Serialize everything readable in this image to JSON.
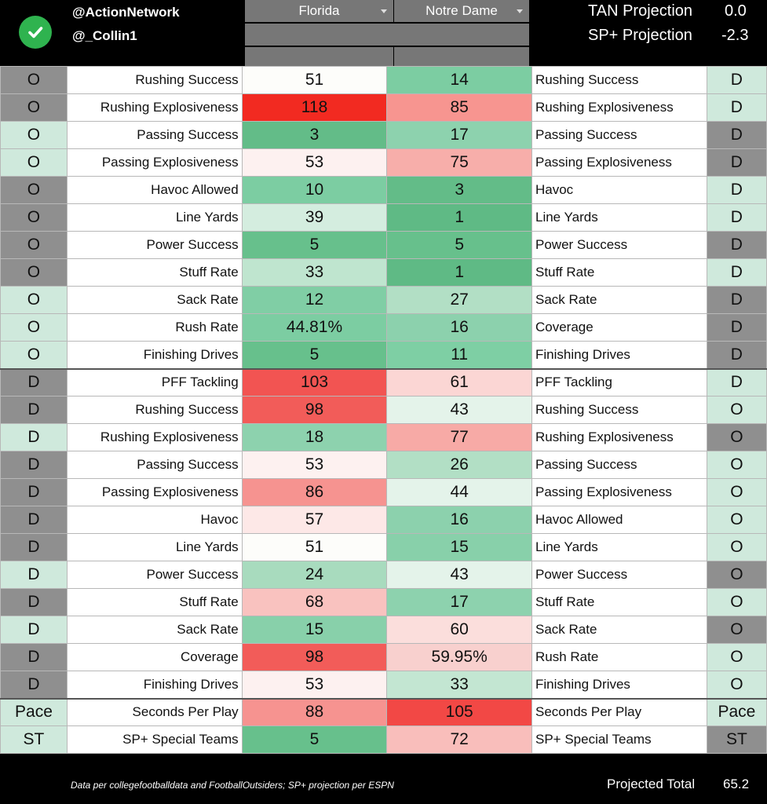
{
  "header": {
    "handle_primary": "@ActionNetwork",
    "handle_secondary": "@_Collin1",
    "check_icon": "check-circle-icon",
    "team_left": "Florida",
    "team_right": "Notre Dame",
    "tan_label": "TAN Projection",
    "tan_value": "0.0",
    "sp_label": "SP+ Projection",
    "sp_value": "-2.3"
  },
  "colors": {
    "accent_green": "#2fb34f",
    "header_band": "#777777",
    "side_dark": "#8f8f8f",
    "side_light": "#cfe9dc"
  },
  "rows": [
    {
      "ls": "O",
      "lst": "d",
      "ll": "Rushing Success",
      "lv": "51",
      "lc": "#fdfdfa",
      "rv": "14",
      "rc": "#7ccda2",
      "rl": "Rushing Success",
      "rs": "D",
      "rst": "l"
    },
    {
      "ls": "O",
      "lst": "d",
      "ll": "Rushing Explosiveness",
      "lv": "118",
      "lc": "#f22a21",
      "rv": "85",
      "rc": "#f79590",
      "rl": "Rushing Explosiveness",
      "rs": "D",
      "rst": "l"
    },
    {
      "ls": "O",
      "lst": "l",
      "ll": "Passing Success",
      "lv": "3",
      "lc": "#63bc88",
      "rv": "17",
      "rc": "#8dd2ae",
      "rl": "Passing Success",
      "rs": "D",
      "rst": "d"
    },
    {
      "ls": "O",
      "lst": "l",
      "ll": "Passing Explosiveness",
      "lv": "53",
      "lc": "#fdf1f0",
      "rv": "75",
      "rc": "#f7aeaa",
      "rl": "Passing Explosiveness",
      "rs": "D",
      "rst": "d"
    },
    {
      "ls": "O",
      "lst": "d",
      "ll": "Havoc Allowed",
      "lv": "10",
      "lc": "#7ccda2",
      "rv": "3",
      "rc": "#63bc88",
      "rl": "Havoc",
      "rs": "D",
      "rst": "l"
    },
    {
      "ls": "O",
      "lst": "d",
      "ll": "Line Yards",
      "lv": "39",
      "lc": "#d4eddf",
      "rv": "1",
      "rc": "#5fba85",
      "rl": "Line Yards",
      "rs": "D",
      "rst": "l"
    },
    {
      "ls": "O",
      "lst": "d",
      "ll": "Power Success",
      "lv": "5",
      "lc": "#67c08c",
      "rv": "5",
      "rc": "#67c08c",
      "rl": "Power Success",
      "rs": "D",
      "rst": "d"
    },
    {
      "ls": "O",
      "lst": "d",
      "ll": "Stuff Rate",
      "lv": "33",
      "lc": "#bfe5cf",
      "rv": "1",
      "rc": "#5fba85",
      "rl": "Stuff Rate",
      "rs": "D",
      "rst": "l"
    },
    {
      "ls": "O",
      "lst": "l",
      "ll": "Sack Rate",
      "lv": "12",
      "lc": "#80cea5",
      "rv": "27",
      "rc": "#b2dfc5",
      "rl": "Sack Rate",
      "rs": "D",
      "rst": "d"
    },
    {
      "ls": "O",
      "lst": "l",
      "ll": "Rush Rate",
      "lv": "44.81%",
      "lc": "#7ccda2",
      "rv": "16",
      "rc": "#8cd1ad",
      "rl": "Coverage",
      "rs": "D",
      "rst": "d"
    },
    {
      "ls": "O",
      "lst": "l",
      "ll": "Finishing Drives",
      "lv": "5",
      "lc": "#67c08c",
      "rv": "11",
      "rc": "#7ecfa4",
      "rl": "Finishing Drives",
      "rs": "D",
      "rst": "d"
    },
    {
      "ls": "D",
      "lst": "d",
      "ll": "PFF Tackling",
      "lv": "103",
      "lc": "#f25452",
      "rv": "61",
      "rc": "#fbd6d4",
      "rl": "PFF Tackling",
      "rs": "D",
      "rst": "l",
      "sep": true
    },
    {
      "ls": "D",
      "lst": "d",
      "ll": "Rushing Success",
      "lv": "98",
      "lc": "#f25c59",
      "rv": "43",
      "rc": "#e4f3ea",
      "rl": "Rushing Success",
      "rs": "O",
      "rst": "l"
    },
    {
      "ls": "D",
      "lst": "l",
      "ll": "Rushing Explosiveness",
      "lv": "18",
      "lc": "#8dd2ae",
      "rv": "77",
      "rc": "#f7aaa6",
      "rl": "Rushing Explosiveness",
      "rs": "O",
      "rst": "d"
    },
    {
      "ls": "D",
      "lst": "d",
      "ll": "Passing Success",
      "lv": "53",
      "lc": "#fdf1f0",
      "rv": "26",
      "rc": "#b2dfc5",
      "rl": "Passing Success",
      "rs": "O",
      "rst": "l"
    },
    {
      "ls": "D",
      "lst": "d",
      "ll": "Passing Explosiveness",
      "lv": "86",
      "lc": "#f69390",
      "rv": "44",
      "rc": "#e4f3ea",
      "rl": "Passing Explosiveness",
      "rs": "O",
      "rst": "l"
    },
    {
      "ls": "D",
      "lst": "d",
      "ll": "Havoc",
      "lv": "57",
      "lc": "#fde8e7",
      "rv": "16",
      "rc": "#8cd1ad",
      "rl": "Havoc Allowed",
      "rs": "O",
      "rst": "l"
    },
    {
      "ls": "D",
      "lst": "d",
      "ll": "Line Yards",
      "lv": "51",
      "lc": "#fdfdfa",
      "rv": "15",
      "rc": "#88d0aa",
      "rl": "Line Yards",
      "rs": "O",
      "rst": "l"
    },
    {
      "ls": "D",
      "lst": "l",
      "ll": "Power Success",
      "lv": "24",
      "lc": "#a8dbbe",
      "rv": "43",
      "rc": "#e4f3ea",
      "rl": "Power Success",
      "rs": "O",
      "rst": "d"
    },
    {
      "ls": "D",
      "lst": "d",
      "ll": "Stuff Rate",
      "lv": "68",
      "lc": "#f9c2bf",
      "rv": "17",
      "rc": "#8dd2ae",
      "rl": "Stuff Rate",
      "rs": "O",
      "rst": "l"
    },
    {
      "ls": "D",
      "lst": "l",
      "ll": "Sack Rate",
      "lv": "15",
      "lc": "#88d0aa",
      "rv": "60",
      "rc": "#fbdedc",
      "rl": "Sack Rate",
      "rs": "O",
      "rst": "d"
    },
    {
      "ls": "D",
      "lst": "d",
      "ll": "Coverage",
      "lv": "98",
      "lc": "#f25c59",
      "rv": "59.95%",
      "rc": "#f8d0ce",
      "rl": "Rush Rate",
      "rs": "O",
      "rst": "l"
    },
    {
      "ls": "D",
      "lst": "d",
      "ll": "Finishing Drives",
      "lv": "53",
      "lc": "#fdf1f0",
      "rv": "33",
      "rc": "#c3e6d2",
      "rl": "Finishing Drives",
      "rs": "O",
      "rst": "l"
    },
    {
      "ls": "Pace",
      "lst": "l",
      "ll": "Seconds Per Play",
      "lv": "88",
      "lc": "#f69390",
      "rv": "105",
      "rc": "#f24845",
      "rl": "Seconds Per Play",
      "rs": "Pace",
      "rst": "l",
      "sep": true
    },
    {
      "ls": "ST",
      "lst": "l",
      "ll": "SP+ Special Teams",
      "lv": "5",
      "lc": "#67c08c",
      "rv": "72",
      "rc": "#f9bebb",
      "rl": "SP+ Special Teams",
      "rs": "ST",
      "rst": "d"
    }
  ],
  "footer": {
    "note": "Data per collegefootballdata and FootballOutsiders; SP+ projection per ESPN",
    "total_label": "Projected Total",
    "total_value": "65.2"
  }
}
